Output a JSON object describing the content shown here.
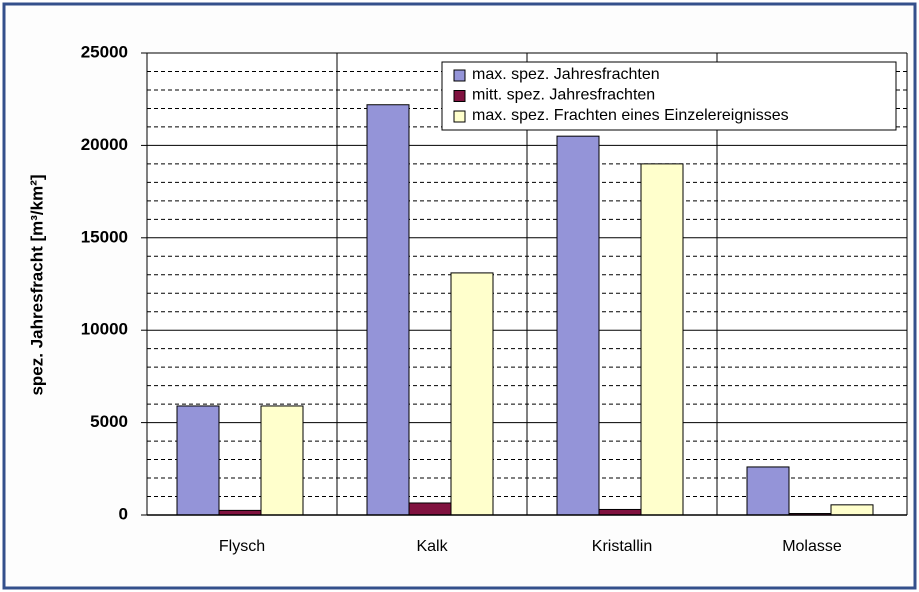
{
  "chart_data": {
    "type": "bar",
    "y_axis_label": "spez. Jahresfracht [m³/km²]",
    "categories": [
      "Flysch",
      "Kalk",
      "Kristallin",
      "Molasse"
    ],
    "series": [
      {
        "name": "max. spez. Jahresfrachten",
        "color": "#9494d8",
        "values": [
          5900,
          22200,
          20500,
          2600
        ]
      },
      {
        "name": "mitt. spez. Jahresfrachten",
        "color": "#80123f",
        "values": [
          250,
          650,
          300,
          80
        ]
      },
      {
        "name": "max. spez. Frachten eines Einzelereignisses",
        "color": "#ffffcc",
        "values": [
          5900,
          13100,
          19000,
          550
        ]
      }
    ],
    "ylim": [
      0,
      25000
    ],
    "yticks": [
      0,
      5000,
      10000,
      15000,
      20000,
      25000
    ],
    "yminor": [
      1000,
      2000,
      3000,
      4000,
      6000,
      7000,
      8000,
      9000,
      11000,
      12000,
      13000,
      14000,
      16000,
      17000,
      18000,
      19000,
      21000,
      22000,
      23000,
      24000
    ],
    "grid": true,
    "legend": "upper right"
  }
}
